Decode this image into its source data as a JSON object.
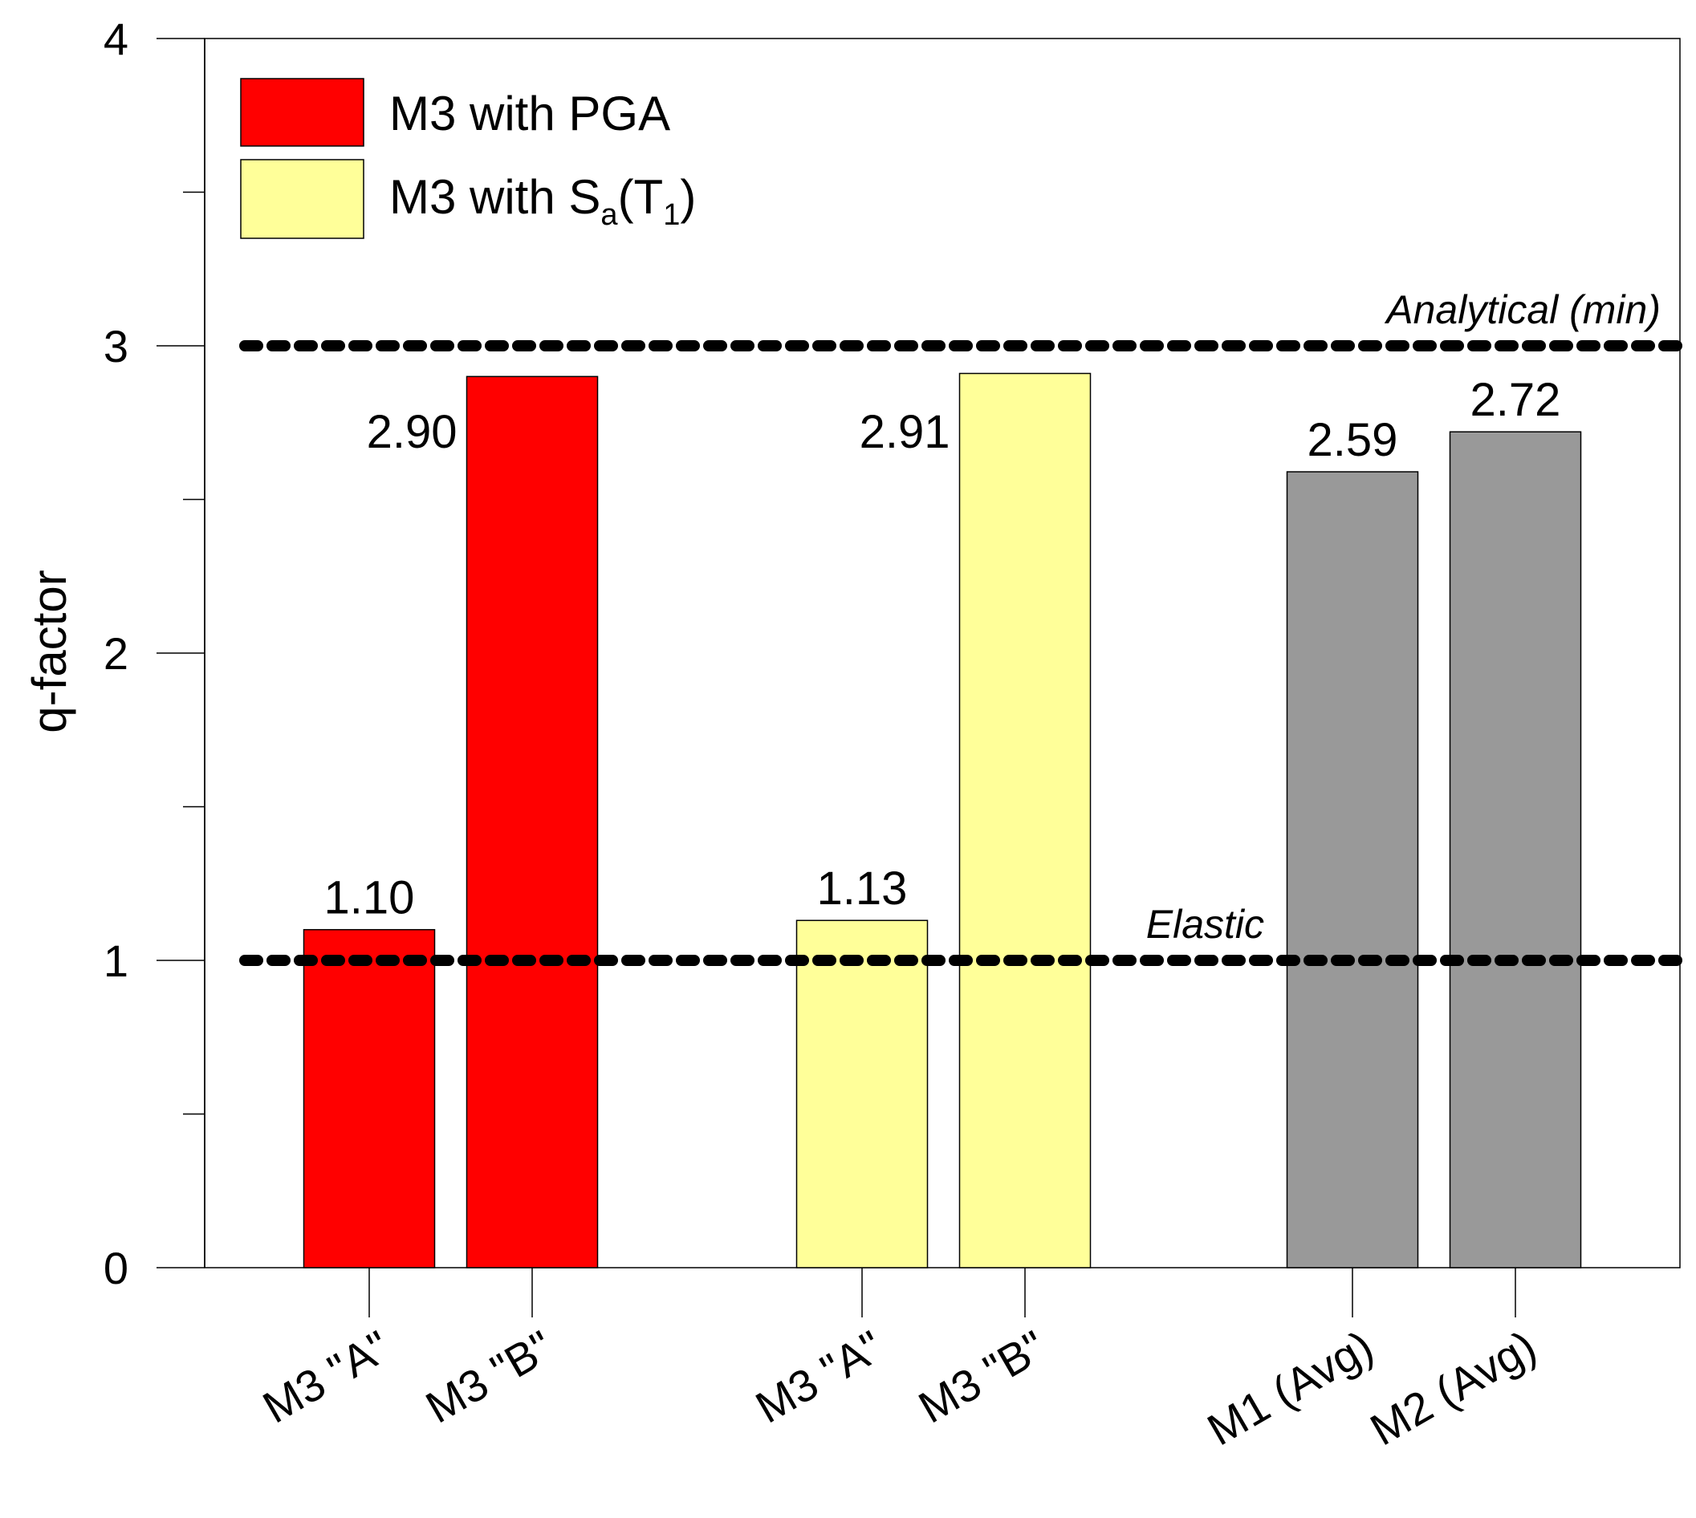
{
  "chart_data": {
    "type": "bar",
    "title": "",
    "xlabel": "",
    "ylabel": "q-factor",
    "ylim": [
      0,
      4
    ],
    "yticks": [
      0,
      1,
      2,
      3,
      4
    ],
    "grid": false,
    "legend_position": "top-left",
    "colors": {
      "pga": "#ff0000",
      "sa": "#ffff99",
      "avg": "#999999",
      "axis": "#000000"
    },
    "legend": [
      {
        "name": "M3 with PGA",
        "color_key": "pga",
        "label_main": "M3 with PGA"
      },
      {
        "name": "M3 with Sa(T1)",
        "color_key": "sa",
        "label_main": "M3 with S",
        "label_sub": "a",
        "label_mid": "(T",
        "label_sub2": "1",
        "label_end": ")"
      }
    ],
    "bars": [
      {
        "category": "M3 \"A\"",
        "value": 1.1,
        "label": "1.10",
        "color_key": "pga"
      },
      {
        "category": "M3 \"B\"",
        "value": 2.9,
        "label": "2.90",
        "color_key": "pga"
      },
      {
        "category": "M3 \"A\"",
        "value": 1.13,
        "label": "1.13",
        "color_key": "sa"
      },
      {
        "category": "M3 \"B\"",
        "value": 2.91,
        "label": "2.91",
        "color_key": "sa"
      },
      {
        "category": "M1 (Avg)",
        "value": 2.59,
        "label": "2.59",
        "color_key": "avg"
      },
      {
        "category": "M2 (Avg)",
        "value": 2.72,
        "label": "2.72",
        "color_key": "avg"
      }
    ],
    "reference_lines": [
      {
        "value": 3,
        "label": "Analytical (min)",
        "style": "dotted"
      },
      {
        "value": 1,
        "label": "Elastic",
        "style": "dotted"
      }
    ]
  }
}
